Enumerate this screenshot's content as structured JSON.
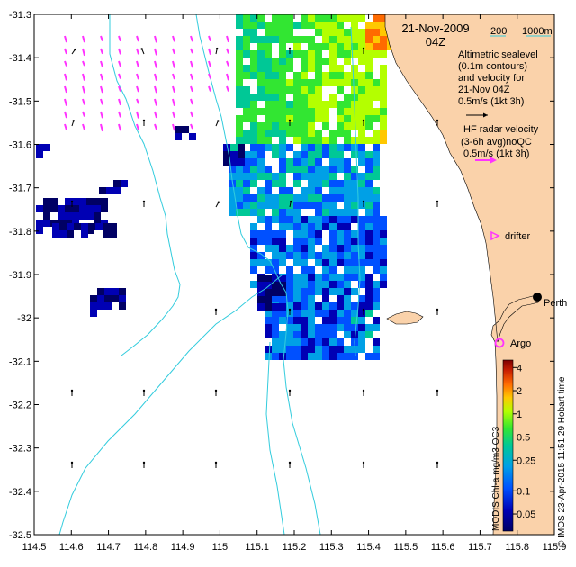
{
  "map": {
    "date": "21-Nov-2009",
    "time": "04Z",
    "scale_labels": [
      "200",
      "1000m"
    ],
    "legend_altimetry": [
      "Altimetric sealevel",
      "(0.1m contours)",
      "and velocity for",
      "21-Nov 04Z",
      "0.5m/s (1kt 3h)"
    ],
    "legend_hf": [
      "HF radar velocity",
      "(3-6h avg)noQC",
      "0.5m/s (1kt 3h)"
    ],
    "drifter_label": "drifter",
    "argo_label": "Argo",
    "city_label": "Perth",
    "colorbar_title": "MODIS Chl-a mg/m3 OC3",
    "credit": "© IMOS 23-Apr-2015 11:51:29 Hobart time",
    "colorbar_ticks": [
      "4",
      "2",
      "1",
      "0.5",
      "0.25",
      "0.1",
      "0.05"
    ],
    "colorbar_tick_values": [
      4,
      2,
      1,
      0.5,
      0.25,
      0.1,
      0.05
    ],
    "colorbar_range": [
      0.03,
      5
    ],
    "x_ticks": [
      "114.5",
      "114.6",
      "114.7",
      "114.8",
      "114.9",
      "115",
      "115.1",
      "115.2",
      "115.3",
      "115.4",
      "115.5",
      "115.6",
      "115.7",
      "115.8",
      "115.9"
    ],
    "y_ticks": [
      "-31.3",
      "-31.4",
      "-31.5",
      "-31.6",
      "-31.7",
      "-31.8",
      "-31.9",
      "-32",
      "-32.1",
      "-32.2",
      "-32.3",
      "-32.4",
      "-32.5"
    ],
    "lon_range": [
      114.5,
      115.9
    ],
    "lat_range": [
      -32.5,
      -31.3
    ],
    "colors": {
      "land": "#fad2aa",
      "isobath": "#33ccdd",
      "hf_vector": "#ff33ff",
      "alt_vector": "#000000"
    },
    "colorbar_colors": [
      "#7f0000",
      "#c81e00",
      "#ff6a00",
      "#ffc800",
      "#b4ff00",
      "#32e632",
      "#00c896",
      "#00a0e6",
      "#0050ff",
      "#0000b4",
      "#000064"
    ]
  }
}
